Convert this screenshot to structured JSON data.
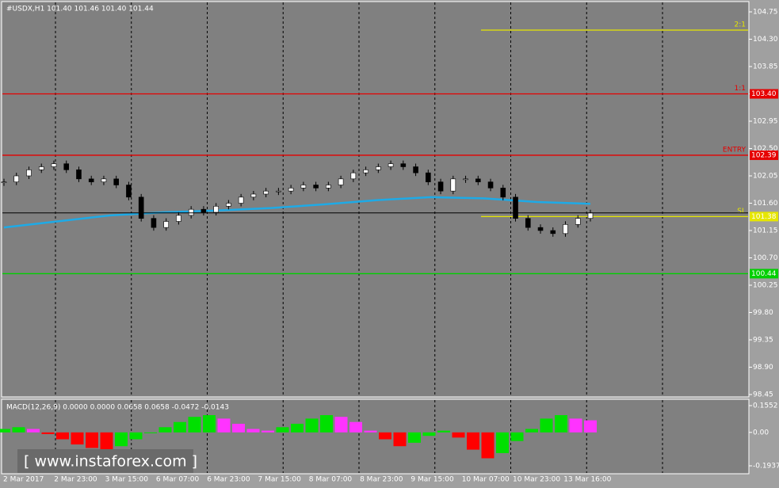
{
  "chart_data": [
    {
      "type": "candle",
      "title": "#USDX,H1  101.40 101.46 101.40 101.44",
      "values": [
        101.95,
        102.05,
        102.15,
        102.2,
        102.25,
        102.15,
        102.0,
        101.95,
        102.0,
        101.9,
        101.7,
        101.35,
        101.2,
        101.3,
        101.4,
        101.5,
        101.45,
        101.55,
        101.6,
        101.7,
        101.75,
        101.8,
        101.8,
        101.85,
        101.9,
        101.85,
        101.9,
        102.0,
        102.1,
        102.15,
        102.2,
        102.25,
        102.2,
        102.1,
        101.95,
        101.8,
        102.0,
        102.0,
        101.95,
        101.85,
        101.7,
        101.35,
        101.2,
        101.15,
        101.1,
        101.25,
        101.35,
        101.44
      ],
      "moving_average": {
        "color": "#1eaae6",
        "values": [
          101.2,
          101.3,
          101.4,
          101.45,
          101.48,
          101.52,
          101.58,
          101.65,
          101.7,
          101.68,
          101.62,
          101.59
        ]
      },
      "ylim": [
        98.45,
        104.75
      ],
      "yticks": [
        104.75,
        {
          "value": 104.3,
          "label": "104.30"
        },
        103.85,
        {
          "value": 103.4,
          "label": "103.40"
        },
        102.95,
        {
          "value": 102.5,
          "label": "102.50"
        },
        102.05,
        {
          "value": 101.6,
          "label": "101.60"
        },
        101.15,
        {
          "value": 100.7,
          "label": "100.70"
        },
        100.25,
        {
          "value": 99.8,
          "label": "99.80"
        },
        99.35,
        {
          "value": 98.9,
          "label": "98.90"
        },
        98.45
      ],
      "levels": [
        {
          "name": "2:1",
          "value": 104.45,
          "color": "#e6e600"
        },
        {
          "name": "1:1",
          "value": 103.4,
          "value_label": "103.40",
          "color": "#e60000"
        },
        {
          "name": "ENTRY",
          "value": 102.39,
          "value_label": "102.39",
          "color": "#e60000"
        },
        {
          "name": "SL",
          "value": 101.38,
          "value_label": "101.38",
          "color": "#e6e600"
        },
        {
          "value": 100.44,
          "value_label": "100.44",
          "color": "#00d000"
        }
      ],
      "x_labels": [
        "2 Mar 2017",
        "2 Mar 23:00",
        "3 Mar 15:00",
        "6 Mar 07:00",
        "6 Mar 23:00",
        "7 Mar 15:00",
        "8 Mar 07:00",
        "8 Mar 23:00",
        "9 Mar 15:00",
        "10 Mar 07:00",
        "10 Mar 23:00",
        "13 Mar 16:00"
      ],
      "watermark": "[  www.instaforex.com ]"
    },
    {
      "type": "histogram",
      "title": "MACD(12,26,9) 0.0000 0.0000 0.0658 0.0658 -0.0472 -0.0143",
      "values": [
        0.02,
        0.03,
        0.02,
        -0.01,
        -0.04,
        -0.07,
        -0.09,
        -0.1,
        -0.08,
        -0.04,
        0.0,
        0.03,
        0.06,
        0.09,
        0.1,
        0.08,
        0.05,
        0.02,
        0.01,
        0.03,
        0.05,
        0.08,
        0.1,
        0.09,
        0.06,
        0.01,
        -0.04,
        -0.08,
        -0.06,
        -0.02,
        0.01,
        -0.03,
        -0.1,
        -0.15,
        -0.12,
        -0.05,
        0.02,
        0.08,
        0.1,
        0.08,
        0.07
      ],
      "ylim": [
        -0.1937,
        0.1552
      ],
      "yticks": [
        0.1552,
        {
          "value": 0,
          "label": "0.00"
        },
        -0.1937
      ]
    }
  ]
}
